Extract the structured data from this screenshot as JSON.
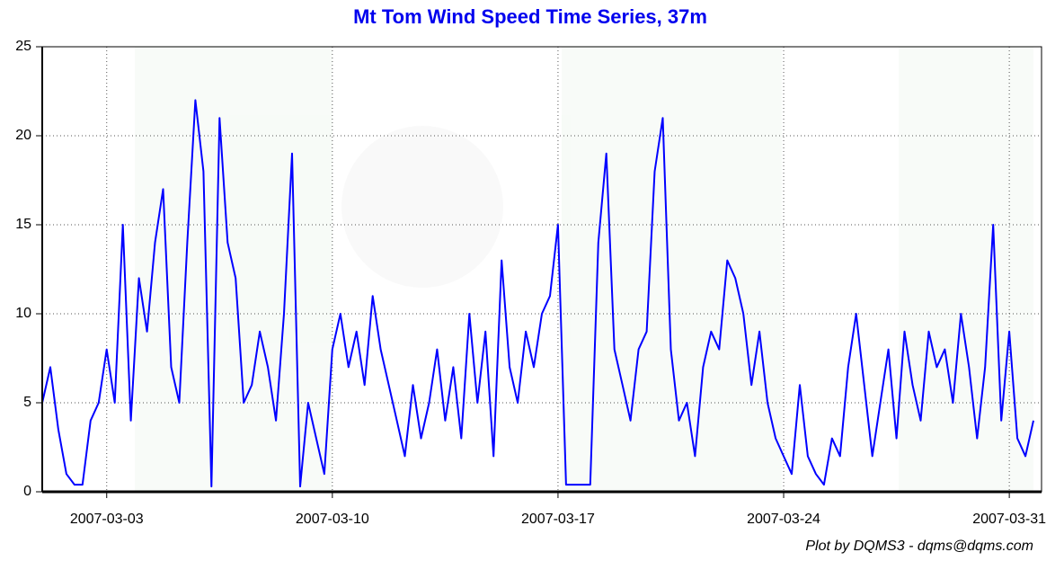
{
  "chart_data": {
    "type": "line",
    "title": "Mt Tom Wind Speed Time Series, 37m",
    "footnote": "Plot by DQMS3 - dqms@dqms.com",
    "x": [
      "2007-03-01 00:00",
      "2007-03-01 06:00",
      "2007-03-01 12:00",
      "2007-03-01 18:00",
      "2007-03-02 00:00",
      "2007-03-02 06:00",
      "2007-03-02 12:00",
      "2007-03-02 18:00",
      "2007-03-03 00:00",
      "2007-03-03 06:00",
      "2007-03-03 12:00",
      "2007-03-03 18:00",
      "2007-03-04 00:00",
      "2007-03-04 06:00",
      "2007-03-04 12:00",
      "2007-03-04 18:00",
      "2007-03-05 00:00",
      "2007-03-05 06:00",
      "2007-03-05 12:00",
      "2007-03-05 18:00",
      "2007-03-06 00:00",
      "2007-03-06 06:00",
      "2007-03-06 12:00",
      "2007-03-06 18:00",
      "2007-03-07 00:00",
      "2007-03-07 06:00",
      "2007-03-07 12:00",
      "2007-03-07 18:00",
      "2007-03-08 00:00",
      "2007-03-08 06:00",
      "2007-03-08 12:00",
      "2007-03-08 18:00",
      "2007-03-09 00:00",
      "2007-03-09 06:00",
      "2007-03-09 12:00",
      "2007-03-09 18:00",
      "2007-03-10 00:00",
      "2007-03-10 06:00",
      "2007-03-10 12:00",
      "2007-03-10 18:00",
      "2007-03-11 00:00",
      "2007-03-11 06:00",
      "2007-03-11 12:00",
      "2007-03-11 18:00",
      "2007-03-12 00:00",
      "2007-03-12 06:00",
      "2007-03-12 12:00",
      "2007-03-12 18:00",
      "2007-03-13 00:00",
      "2007-03-13 06:00",
      "2007-03-13 12:00",
      "2007-03-13 18:00",
      "2007-03-14 00:00",
      "2007-03-14 06:00",
      "2007-03-14 12:00",
      "2007-03-14 18:00",
      "2007-03-15 00:00",
      "2007-03-15 06:00",
      "2007-03-15 12:00",
      "2007-03-15 18:00",
      "2007-03-16 00:00",
      "2007-03-16 06:00",
      "2007-03-16 12:00",
      "2007-03-16 18:00",
      "2007-03-17 00:00",
      "2007-03-17 06:00",
      "2007-03-17 12:00",
      "2007-03-17 18:00",
      "2007-03-18 00:00",
      "2007-03-18 06:00",
      "2007-03-18 12:00",
      "2007-03-18 18:00",
      "2007-03-19 00:00",
      "2007-03-19 06:00",
      "2007-03-19 12:00",
      "2007-03-19 18:00",
      "2007-03-20 00:00",
      "2007-03-20 06:00",
      "2007-03-20 12:00",
      "2007-03-20 18:00",
      "2007-03-21 00:00",
      "2007-03-21 06:00",
      "2007-03-21 12:00",
      "2007-03-21 18:00",
      "2007-03-22 00:00",
      "2007-03-22 06:00",
      "2007-03-22 12:00",
      "2007-03-22 18:00",
      "2007-03-23 00:00",
      "2007-03-23 06:00",
      "2007-03-23 12:00",
      "2007-03-23 18:00",
      "2007-03-24 00:00",
      "2007-03-24 06:00",
      "2007-03-24 12:00",
      "2007-03-24 18:00",
      "2007-03-25 00:00",
      "2007-03-25 06:00",
      "2007-03-25 12:00",
      "2007-03-25 18:00",
      "2007-03-26 00:00",
      "2007-03-26 06:00",
      "2007-03-26 12:00",
      "2007-03-26 18:00",
      "2007-03-27 00:00",
      "2007-03-27 06:00",
      "2007-03-27 12:00",
      "2007-03-27 18:00",
      "2007-03-28 00:00",
      "2007-03-28 06:00",
      "2007-03-28 12:00",
      "2007-03-28 18:00",
      "2007-03-29 00:00",
      "2007-03-29 06:00",
      "2007-03-29 12:00",
      "2007-03-29 18:00",
      "2007-03-30 00:00",
      "2007-03-30 06:00",
      "2007-03-30 12:00",
      "2007-03-30 18:00",
      "2007-03-31 00:00",
      "2007-03-31 06:00",
      "2007-03-31 12:00",
      "2007-03-31 18:00"
    ],
    "series": [
      {
        "name": "Wind Speed",
        "color": "#0000ff",
        "values": [
          5,
          7,
          3.5,
          1,
          0.4,
          0.4,
          4,
          5,
          8,
          5,
          15,
          4,
          12,
          9,
          14,
          17,
          7,
          5,
          14,
          22,
          18,
          0.3,
          21,
          14,
          12,
          5,
          6,
          9,
          7,
          4,
          10,
          19,
          0.3,
          5,
          3,
          1,
          8,
          10,
          7,
          9,
          6,
          11,
          8,
          6,
          4,
          2,
          6,
          3,
          5,
          8,
          4,
          7,
          3,
          10,
          5,
          9,
          2,
          13,
          7,
          5,
          9,
          7,
          10,
          11,
          15,
          0.4,
          0.4,
          0.4,
          0.4,
          14,
          19,
          8,
          6,
          4,
          8,
          9,
          18,
          21,
          8,
          4,
          5,
          2,
          7,
          9,
          8,
          13,
          12,
          10,
          6,
          9,
          5,
          3,
          2,
          1,
          6,
          2,
          1,
          0.4,
          3,
          2,
          7,
          10,
          6,
          2,
          5,
          8,
          3,
          9,
          6,
          4,
          9,
          7,
          8,
          5,
          10,
          7,
          3,
          7,
          15,
          4,
          9,
          3,
          2,
          4
        ]
      }
    ],
    "xlim": [
      "2007-03-01 00:00",
      "2007-04-01 00:00"
    ],
    "xticks": [
      "2007-03-03",
      "2007-03-10",
      "2007-03-17",
      "2007-03-24",
      "2007-03-31"
    ],
    "ylim": [
      0,
      25
    ],
    "yticks": [
      0,
      5,
      10,
      15,
      20,
      25
    ],
    "grid": true
  }
}
